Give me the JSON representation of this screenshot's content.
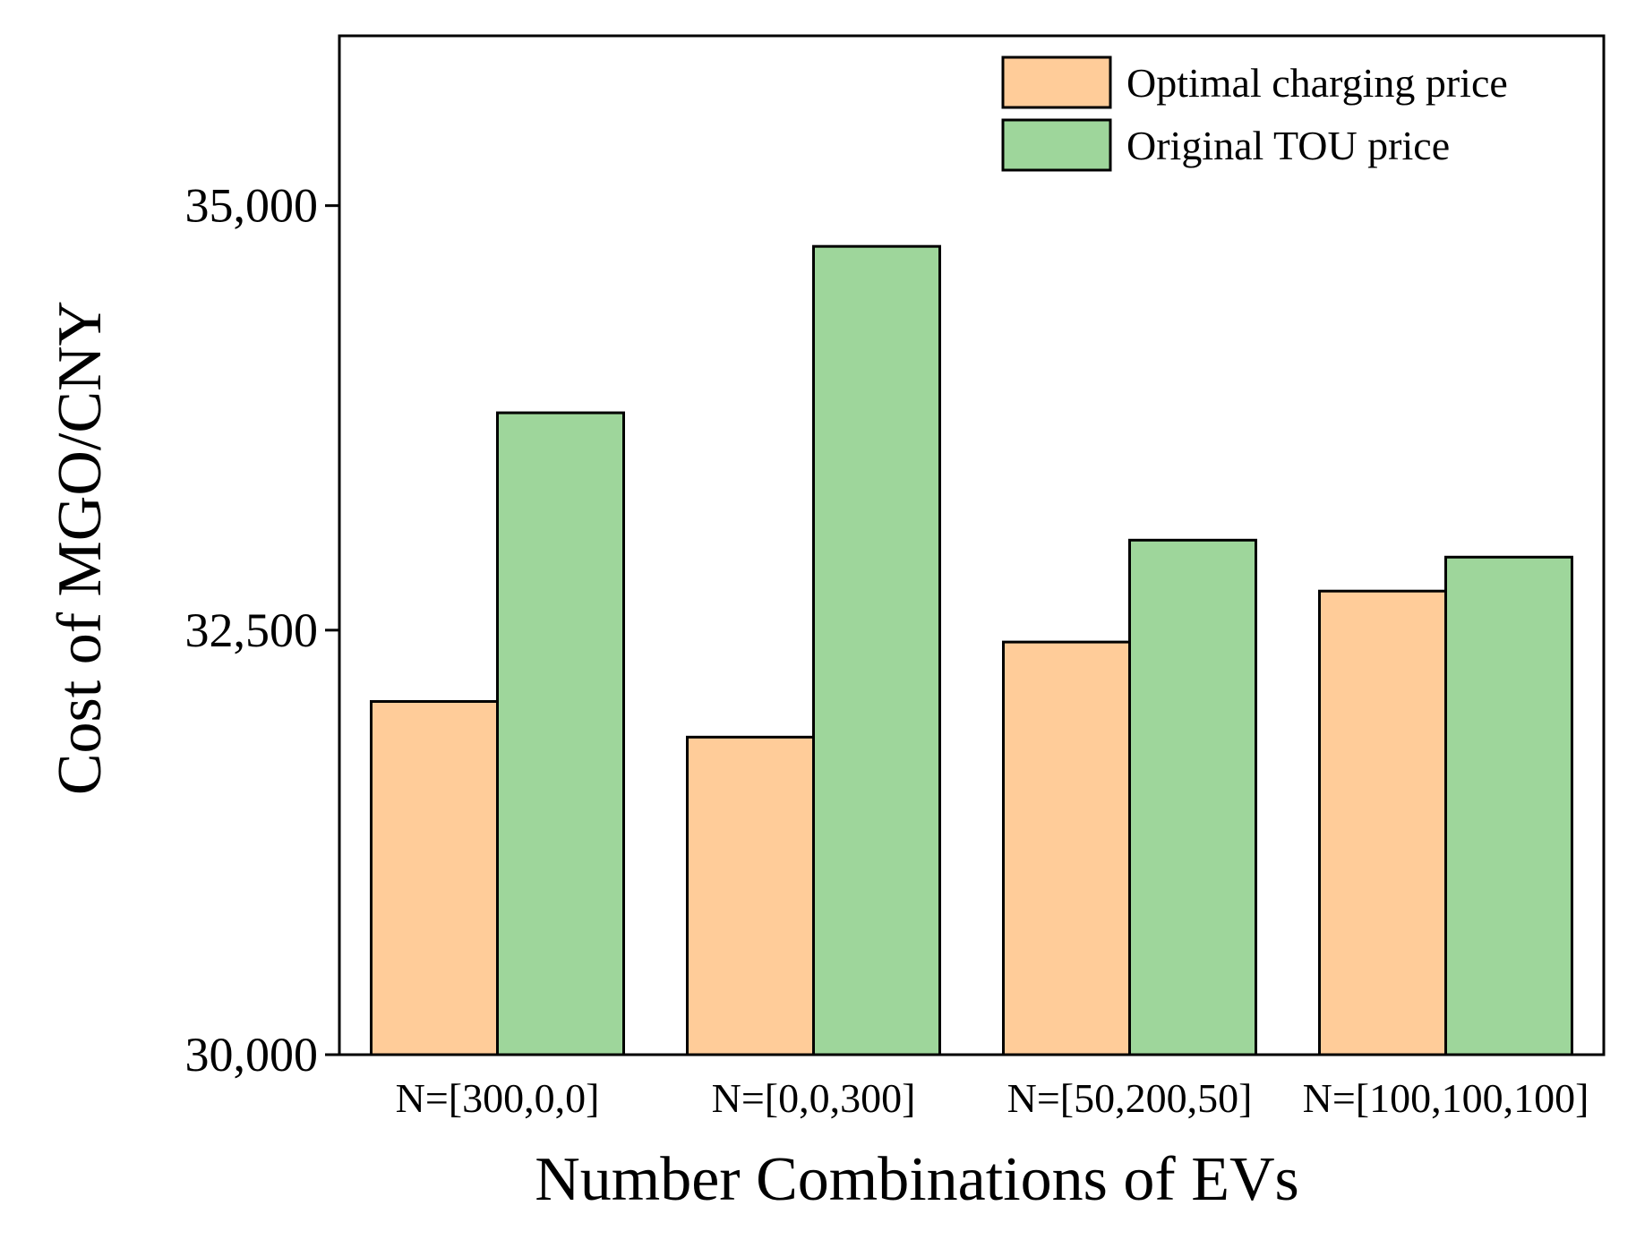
{
  "chart_data": {
    "type": "bar",
    "title": "",
    "xlabel": "Number Combinations of EVs",
    "ylabel": "Cost of MGO/CNY",
    "categories": [
      "N=[300,0,0]",
      "N=[0,0,300]",
      "N=[50,200,50]",
      "N=[100,100,100]"
    ],
    "series": [
      {
        "name": "Optimal charging price",
        "color": "#FFCC99",
        "values": [
          32080,
          31870,
          32430,
          32730
        ]
      },
      {
        "name": "Original TOU price",
        "color": "#9ED69B",
        "values": [
          33780,
          34760,
          33030,
          32930
        ]
      }
    ],
    "ylim": [
      30000,
      36000
    ],
    "yticks": [
      30000,
      32500,
      35000
    ],
    "ytick_labels": [
      "30,000",
      "32,500",
      "35,000"
    ],
    "grid": false,
    "legend_position": "top-right"
  }
}
